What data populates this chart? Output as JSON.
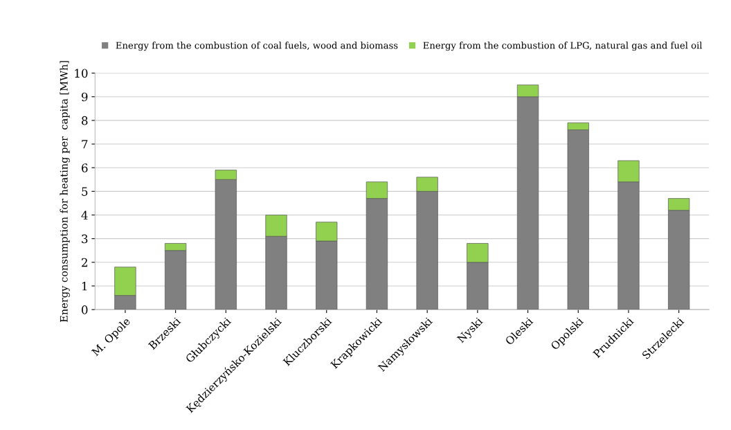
{
  "chart_data": {
    "type": "bar",
    "stacked": true,
    "ylabel": "Energy consumption for heating per  capita [MWh]",
    "categories": [
      "M. Opole",
      "Brzeski",
      "Głubczycki",
      "Kędzierzyńsko-Kozielski",
      "Kluczborski",
      "Krapkowicki",
      "Namysłowski",
      "Nyski",
      "Oleski",
      "Opolski",
      "Prudnicki",
      "Strzelecki"
    ],
    "series": [
      {
        "name": "Energy from the combustion of coal fuels, wood and biomass",
        "color": "#808080",
        "values": [
          0.6,
          2.5,
          5.5,
          3.1,
          2.9,
          4.7,
          5.0,
          2.0,
          9.0,
          7.6,
          5.4,
          4.2
        ]
      },
      {
        "name": "Energy from the combustion of LPG, natural gas and fuel oil",
        "color": "#92d050",
        "values": [
          1.2,
          0.3,
          0.4,
          0.9,
          0.8,
          0.7,
          0.6,
          0.8,
          0.5,
          0.3,
          0.9,
          0.5
        ]
      }
    ],
    "ylim": [
      0,
      10
    ],
    "yticks": [
      0,
      1,
      2,
      3,
      4,
      5,
      6,
      7,
      8,
      9,
      10
    ],
    "grid": "y",
    "legend": "top"
  }
}
